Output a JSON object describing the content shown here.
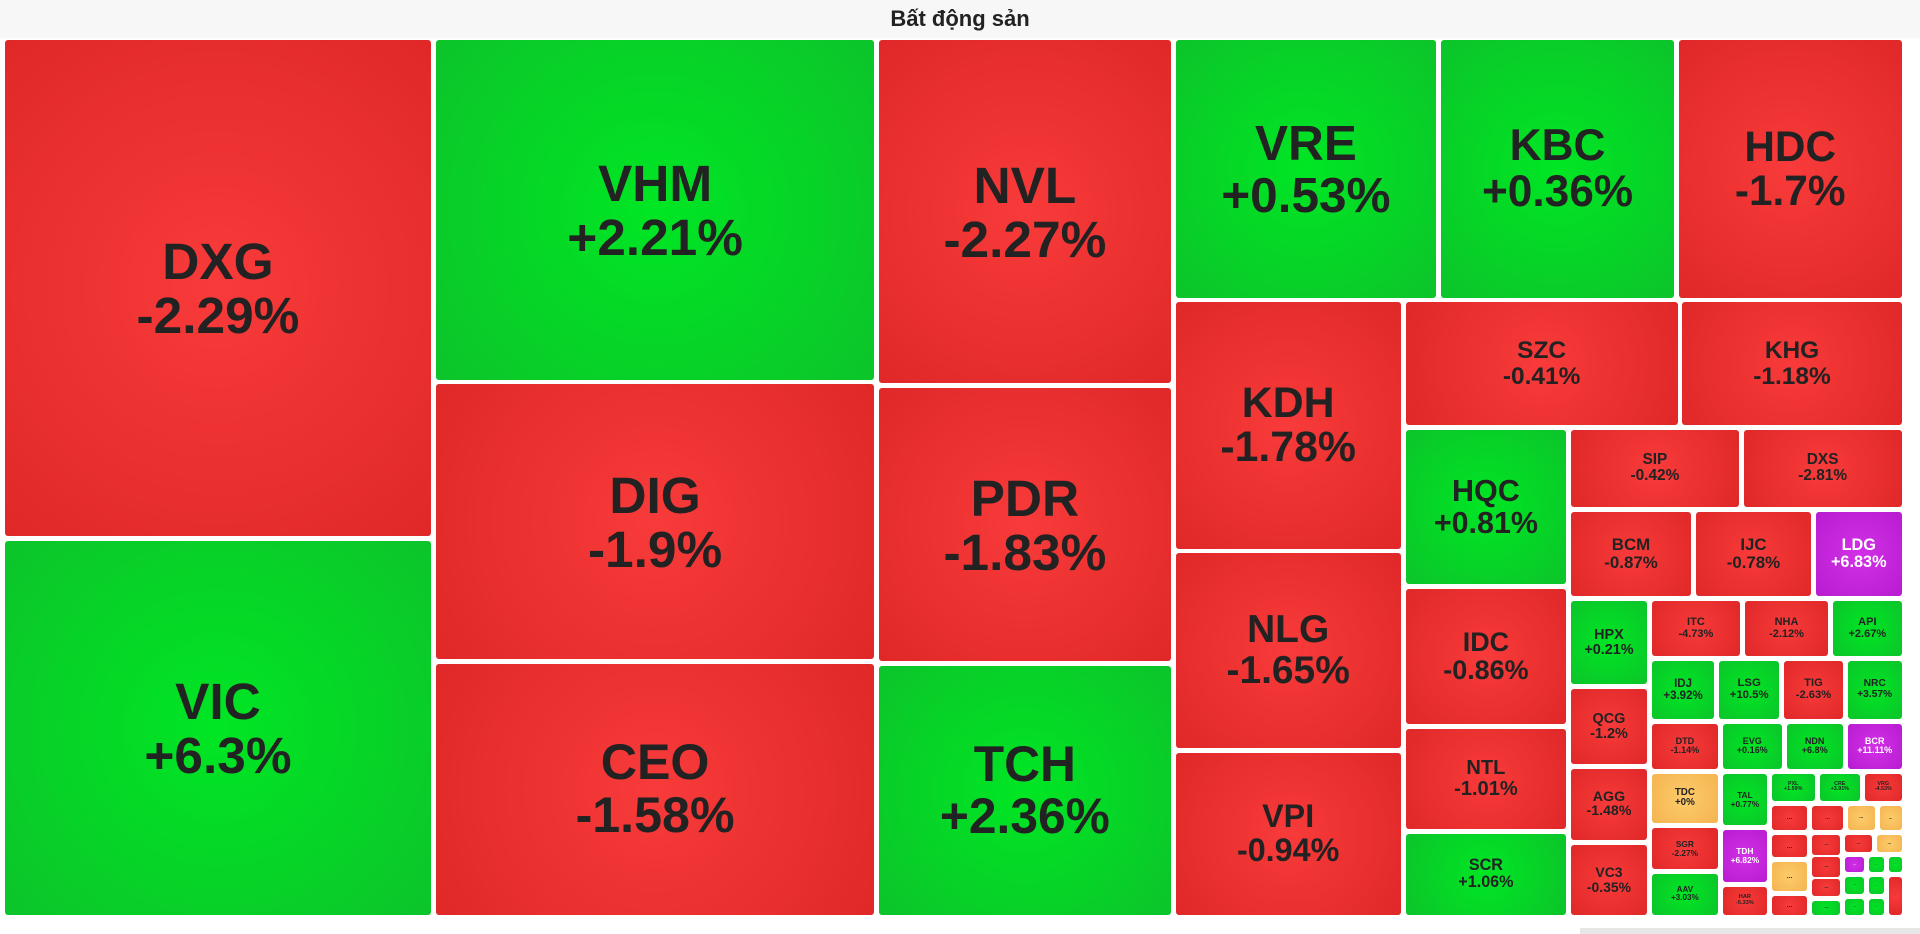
{
  "header": {
    "title": "Bất động sản"
  },
  "tiles": [
    {
      "ticker": "DXG",
      "change": "-2.29%",
      "color": "red"
    },
    {
      "ticker": "VIC",
      "change": "+6.3%",
      "color": "green"
    },
    {
      "ticker": "VHM",
      "change": "+2.21%",
      "color": "green"
    },
    {
      "ticker": "DIG",
      "change": "-1.9%",
      "color": "red"
    },
    {
      "ticker": "CEO",
      "change": "-1.58%",
      "color": "red"
    },
    {
      "ticker": "NVL",
      "change": "-2.27%",
      "color": "red"
    },
    {
      "ticker": "PDR",
      "change": "-1.83%",
      "color": "red"
    },
    {
      "ticker": "TCH",
      "change": "+2.36%",
      "color": "green"
    },
    {
      "ticker": "VRE",
      "change": "+0.53%",
      "color": "green"
    },
    {
      "ticker": "KBC",
      "change": "+0.36%",
      "color": "green"
    },
    {
      "ticker": "HDC",
      "change": "-1.7%",
      "color": "red"
    },
    {
      "ticker": "KDH",
      "change": "-1.78%",
      "color": "red"
    },
    {
      "ticker": "NLG",
      "change": "-1.65%",
      "color": "red"
    },
    {
      "ticker": "VPI",
      "change": "-0.94%",
      "color": "red"
    },
    {
      "ticker": "SZC",
      "change": "-0.41%",
      "color": "red"
    },
    {
      "ticker": "KHG",
      "change": "-1.18%",
      "color": "red"
    },
    {
      "ticker": "HQC",
      "change": "+0.81%",
      "color": "green"
    },
    {
      "ticker": "IDC",
      "change": "-0.86%",
      "color": "red"
    },
    {
      "ticker": "NTL",
      "change": "-1.01%",
      "color": "red"
    },
    {
      "ticker": "SCR",
      "change": "+1.06%",
      "color": "green"
    },
    {
      "ticker": "SIP",
      "change": "-0.42%",
      "color": "red"
    },
    {
      "ticker": "DXS",
      "change": "-2.81%",
      "color": "red"
    },
    {
      "ticker": "BCM",
      "change": "-0.87%",
      "color": "red"
    },
    {
      "ticker": "IJC",
      "change": "-0.78%",
      "color": "red"
    },
    {
      "ticker": "LDG",
      "change": "+6.83%",
      "color": "purple"
    },
    {
      "ticker": "HPX",
      "change": "+0.21%",
      "color": "green"
    },
    {
      "ticker": "QCG",
      "change": "-1.2%",
      "color": "red"
    },
    {
      "ticker": "AGG",
      "change": "-1.48%",
      "color": "red"
    },
    {
      "ticker": "VC3",
      "change": "-0.35%",
      "color": "red"
    },
    {
      "ticker": "ITC",
      "change": "-4.73%",
      "color": "red"
    },
    {
      "ticker": "NHA",
      "change": "-2.12%",
      "color": "red"
    },
    {
      "ticker": "API",
      "change": "+2.67%",
      "color": "green"
    },
    {
      "ticker": "IDJ",
      "change": "+3.92%",
      "color": "green"
    },
    {
      "ticker": "LSG",
      "change": "+10.5%",
      "color": "green"
    },
    {
      "ticker": "TIG",
      "change": "-2.63%",
      "color": "red"
    },
    {
      "ticker": "NRC",
      "change": "+3.57%",
      "color": "green"
    },
    {
      "ticker": "DTD",
      "change": "-1.14%",
      "color": "red"
    },
    {
      "ticker": "EVG",
      "change": "+0.16%",
      "color": "green"
    },
    {
      "ticker": "NDN",
      "change": "+6.8%",
      "color": "green"
    },
    {
      "ticker": "BCR",
      "change": "+11.11%",
      "color": "purple"
    },
    {
      "ticker": "TDC",
      "change": "+0%",
      "color": "yellow"
    },
    {
      "ticker": "SGR",
      "change": "-2.27%",
      "color": "red"
    },
    {
      "ticker": "AAV",
      "change": "+3.03%",
      "color": "green"
    },
    {
      "ticker": "TAL",
      "change": "+0.77%",
      "color": "green"
    },
    {
      "ticker": "TDH",
      "change": "+6.82%",
      "color": "purple"
    },
    {
      "ticker": "HAR",
      "change": "-5.33%",
      "color": "red"
    },
    {
      "ticker": "PXL",
      "change": "+1.59%",
      "color": "green"
    },
    {
      "ticker": "CRE",
      "change": "+3.91%",
      "color": "green"
    },
    {
      "ticker": "VRG",
      "change": "-4.53%",
      "color": "red"
    },
    {
      "ticker": "...",
      "color": "red"
    },
    {
      "ticker": "...",
      "color": "red"
    },
    {
      "ticker": "...",
      "color": "yellow"
    },
    {
      "ticker": "...",
      "color": "yellow"
    },
    {
      "ticker": "...",
      "color": "red"
    },
    {
      "ticker": "...",
      "color": "red"
    },
    {
      "ticker": "...",
      "color": "red"
    },
    {
      "ticker": "...",
      "color": "yellow"
    },
    {
      "ticker": "...",
      "color": "yellow"
    },
    {
      "ticker": "...",
      "color": "red"
    },
    {
      "ticker": "...",
      "color": "purple"
    },
    {
      "ticker": "...",
      "color": "green"
    },
    {
      "ticker": "...",
      "color": "green"
    },
    {
      "ticker": "...",
      "color": "red"
    },
    {
      "ticker": "...",
      "color": "red"
    },
    {
      "ticker": "...",
      "color": "green"
    },
    {
      "ticker": "...",
      "color": "green"
    },
    {
      "ticker": "...",
      "color": "green"
    },
    {
      "ticker": "...",
      "color": "green"
    },
    {
      "ticker": "...",
      "color": "green"
    },
    {
      "ticker": "...",
      "color": "red"
    }
  ]
}
